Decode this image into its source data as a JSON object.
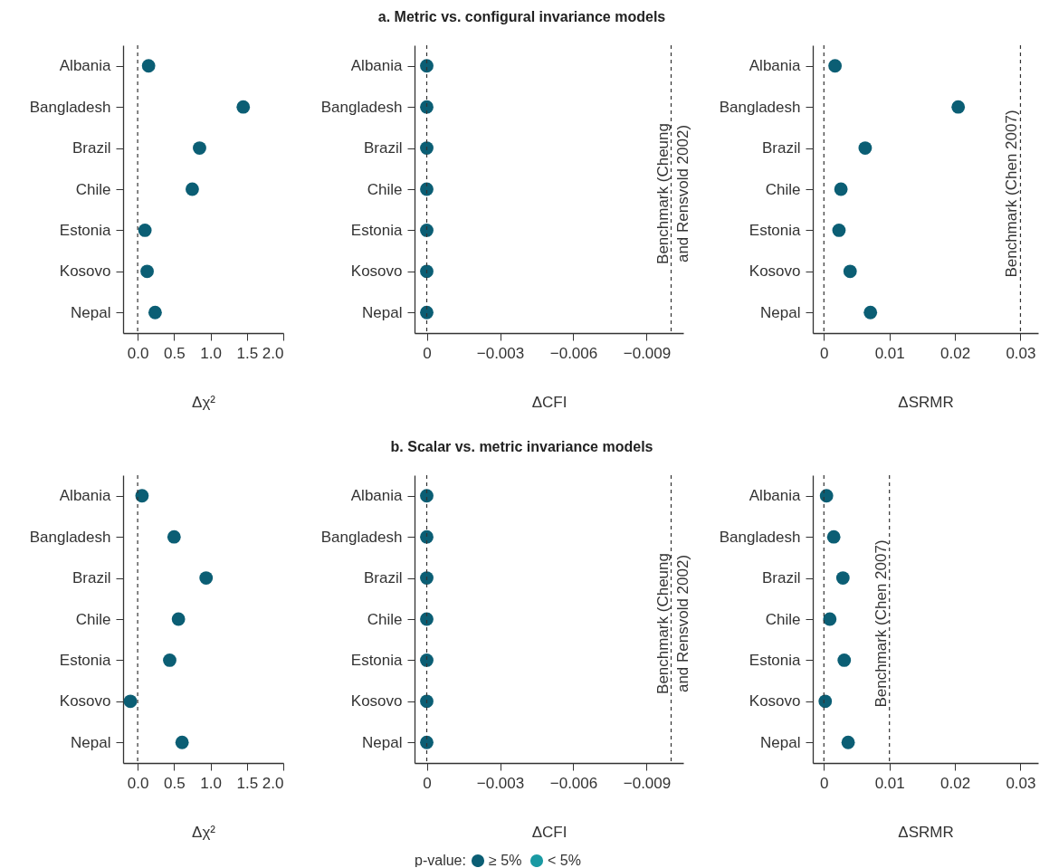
{
  "chart_data": [
    {
      "type": "scatter",
      "orientation": "horizontal",
      "marker": "circle",
      "legend": false,
      "xlabel": "Δχ²",
      "categories": [
        "Albania",
        "Bangladesh",
        "Brazil",
        "Chile",
        "Estonia",
        "Kosovo",
        "Nepal"
      ],
      "series": [
        {
          "color": "#0b5e74",
          "values": [
            0.15,
            1.45,
            0.85,
            0.75,
            0.1,
            0.13,
            0.24
          ]
        }
      ],
      "xlim": [
        -0.2,
        2.0
      ],
      "xticks": [
        {
          "value": 0,
          "label": "0.0"
        },
        0.5,
        {
          "value": 1,
          "label": "1.0"
        },
        1.5,
        {
          "value": 2,
          "label": "2.0"
        }
      ],
      "ref_lines": [
        {
          "axis": "x",
          "value": 0,
          "color": "#333333",
          "line_style": "dashed"
        }
      ]
    },
    {
      "type": "scatter",
      "title": "a. Metric vs. configural invariance models",
      "orientation": "horizontal",
      "marker": "circle",
      "legend": false,
      "xlabel": "ΔCFI",
      "categories": [
        "Albania",
        "Bangladesh",
        "Brazil",
        "Chile",
        "Estonia",
        "Kosovo",
        "Nepal"
      ],
      "series": [
        {
          "color": "#0b5e74",
          "values": [
            0,
            0,
            0,
            0,
            0,
            0,
            0
          ]
        }
      ],
      "xlim": [
        0.0005,
        -0.0105
      ],
      "xticks": [
        0,
        {
          "value": -0.003,
          "label": "−0.003"
        },
        {
          "value": -0.006,
          "label": "−0.006"
        },
        {
          "value": -0.009,
          "label": "−0.009"
        }
      ],
      "ref_lines": [
        {
          "axis": "x",
          "value": 0,
          "color": "#333333",
          "line_style": "dashed"
        },
        {
          "axis": "x",
          "value": -0.01,
          "label": "Benchmark (Cheung\nand Rensvold 2002)",
          "color": "#333333",
          "line_style": "dashed"
        }
      ]
    },
    {
      "type": "scatter",
      "orientation": "horizontal",
      "marker": "circle",
      "legend": false,
      "xlabel": "ΔSRMR",
      "categories": [
        "Albania",
        "Bangladesh",
        "Brazil",
        "Chile",
        "Estonia",
        "Kosovo",
        "Nepal"
      ],
      "series": [
        {
          "color": "#0b5e74",
          "values": [
            0.0017,
            0.0205,
            0.0063,
            0.0026,
            0.0023,
            0.004,
            0.0071
          ]
        }
      ],
      "xlim": [
        -0.0017,
        0.0327
      ],
      "xticks": [
        0,
        0.01,
        0.02,
        0.03
      ],
      "ref_lines": [
        {
          "axis": "x",
          "value": 0,
          "color": "#333333",
          "line_style": "dashed"
        },
        {
          "axis": "x",
          "value": 0.03,
          "label": "Benchmark (Chen 2007)",
          "color": "#333333",
          "line_style": "dashed"
        }
      ]
    },
    {
      "type": "scatter",
      "orientation": "horizontal",
      "marker": "circle",
      "legend": false,
      "xlabel": "Δχ²",
      "categories": [
        "Albania",
        "Bangladesh",
        "Brazil",
        "Chile",
        "Estonia",
        "Kosovo",
        "Nepal"
      ],
      "series": [
        {
          "color": "#0b5e74",
          "values": [
            0.06,
            0.5,
            0.94,
            0.56,
            0.44,
            -0.1,
            0.61
          ]
        }
      ],
      "xlim": [
        -0.2,
        2.0
      ],
      "xticks": [
        {
          "value": 0,
          "label": "0.0"
        },
        0.5,
        {
          "value": 1,
          "label": "1.0"
        },
        1.5,
        {
          "value": 2,
          "label": "2.0"
        }
      ],
      "ref_lines": [
        {
          "axis": "x",
          "value": 0,
          "color": "#333333",
          "line_style": "dashed"
        }
      ]
    },
    {
      "type": "scatter",
      "title": "b. Scalar vs. metric invariance models",
      "orientation": "horizontal",
      "marker": "circle",
      "legend": "bottom",
      "legend_title": "p-value:",
      "xlabel": "ΔCFI",
      "categories": [
        "Albania",
        "Bangladesh",
        "Brazil",
        "Chile",
        "Estonia",
        "Kosovo",
        "Nepal"
      ],
      "series": [
        {
          "name": "≥ 5%",
          "color": "#0b5e74",
          "values": [
            0,
            0,
            0,
            0,
            0,
            0,
            0
          ]
        },
        {
          "name": "< 5%",
          "color": "#1a9aa3",
          "values": [
            null,
            null,
            null,
            null,
            null,
            null,
            null
          ]
        }
      ],
      "xlim": [
        0.0005,
        -0.0105
      ],
      "xticks": [
        0,
        {
          "value": -0.003,
          "label": "−0.003"
        },
        {
          "value": -0.006,
          "label": "−0.006"
        },
        {
          "value": -0.009,
          "label": "−0.009"
        }
      ],
      "ref_lines": [
        {
          "axis": "x",
          "value": 0,
          "color": "#333333",
          "line_style": "dashed"
        },
        {
          "axis": "x",
          "value": -0.01,
          "label": "Benchmark (Cheung\nand Rensvold 2002)",
          "color": "#333333",
          "line_style": "dashed"
        }
      ]
    },
    {
      "type": "scatter",
      "orientation": "horizontal",
      "marker": "circle",
      "legend": false,
      "xlabel": "ΔSRMR",
      "categories": [
        "Albania",
        "Bangladesh",
        "Brazil",
        "Chile",
        "Estonia",
        "Kosovo",
        "Nepal"
      ],
      "series": [
        {
          "color": "#0b5e74",
          "values": [
            0.0004,
            0.0015,
            0.0029,
            0.0009,
            0.0031,
            0.0002,
            0.0037
          ]
        }
      ],
      "xlim": [
        -0.0017,
        0.0327
      ],
      "xticks": [
        0,
        0.01,
        0.02,
        0.03
      ],
      "ref_lines": [
        {
          "axis": "x",
          "value": 0,
          "color": "#333333",
          "line_style": "dashed"
        },
        {
          "axis": "x",
          "value": 0.01,
          "label": "Benchmark (Chen 2007)",
          "color": "#333333",
          "line_style": "dashed"
        }
      ]
    }
  ]
}
